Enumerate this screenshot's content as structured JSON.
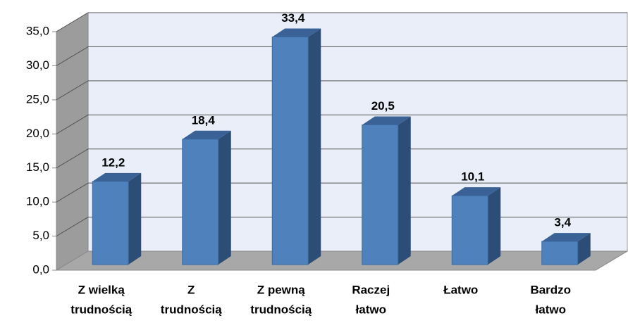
{
  "chart_data": {
    "type": "bar3d",
    "categories": [
      [
        "Z wielką",
        "trudnością"
      ],
      [
        "Z",
        "trudnością"
      ],
      [
        "Z pewną",
        "trudnością"
      ],
      [
        "Raczej",
        "łatwo"
      ],
      [
        "Łatwo"
      ],
      [
        "Bardzo",
        "łatwo"
      ]
    ],
    "values": [
      12.2,
      18.4,
      33.4,
      20.5,
      10.1,
      3.4
    ],
    "value_labels": [
      "12,2",
      "18,4",
      "33,4",
      "20,5",
      "10,1",
      "3,4"
    ],
    "color": "#4f81bd",
    "ylim": [
      0,
      35
    ],
    "yticks": [
      {
        "value": 0,
        "label": "0,0"
      },
      {
        "value": 5,
        "label": "5,0"
      },
      {
        "value": 10,
        "label": "10,0"
      },
      {
        "value": 15,
        "label": "15,0"
      },
      {
        "value": 20,
        "label": "20,0"
      },
      {
        "value": 25,
        "label": "25,0"
      },
      {
        "value": 30,
        "label": "30,0"
      },
      {
        "value": 35,
        "label": "35,0"
      }
    ],
    "grid": true
  }
}
